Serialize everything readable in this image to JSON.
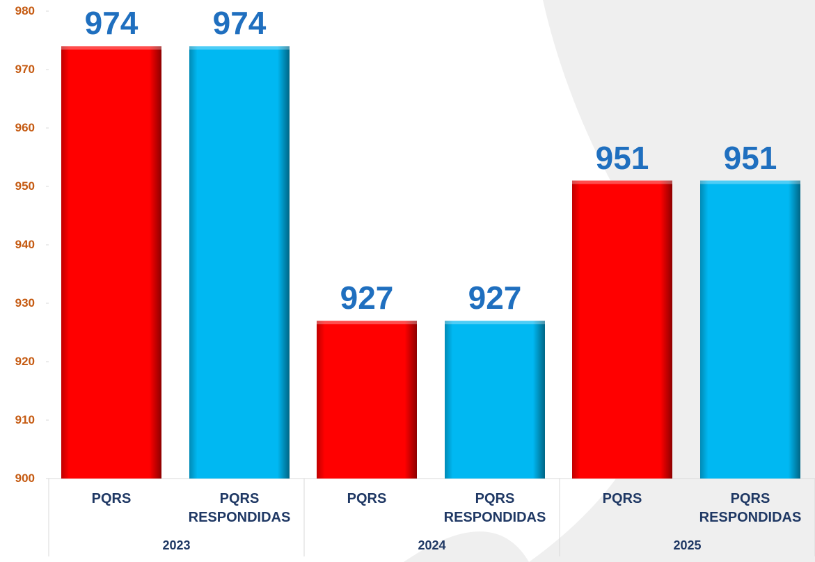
{
  "chart_data": {
    "type": "bar",
    "categories": [
      "2023",
      "2024",
      "2025"
    ],
    "series": [
      {
        "name": "PQRS",
        "color": "#ff0000",
        "values": [
          974,
          927,
          951
        ]
      },
      {
        "name": "PQRS RESPONDIDAS",
        "color": "#00b8f2",
        "values": [
          974,
          927,
          951
        ]
      }
    ],
    "ylim": [
      900,
      980
    ],
    "yticks": [
      900,
      910,
      920,
      930,
      940,
      950,
      960,
      970,
      980
    ],
    "tick_color": "#c55a11",
    "value_label_color": "#1f6fbf",
    "label_color": "#1f3864"
  }
}
